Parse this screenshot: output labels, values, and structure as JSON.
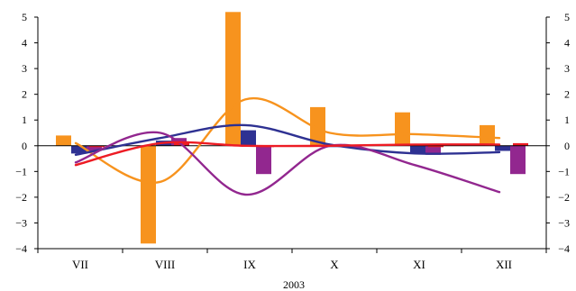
{
  "chart_data": {
    "type": "bar",
    "categories": [
      "VII",
      "VIII",
      "IX",
      "X",
      "XI",
      "XII"
    ],
    "xlabel": "2003",
    "ylim": [
      -4,
      5
    ],
    "yticks": [
      -4,
      -3,
      -2,
      -1,
      0,
      1,
      2,
      3,
      4,
      5
    ],
    "grid": false,
    "legend": "none",
    "dual_y_axis_labels": true,
    "bar_series": [
      {
        "color": "#F7931E",
        "values": [
          0.4,
          -3.8,
          5.2,
          1.5,
          1.3,
          0.8
        ]
      },
      {
        "color": "#2E3192",
        "values": [
          -0.3,
          0.2,
          0.6,
          0.0,
          -0.3,
          -0.2
        ]
      },
      {
        "color": "#92278F",
        "values": [
          -0.2,
          0.3,
          -1.1,
          0.0,
          -0.35,
          -1.1
        ]
      },
      {
        "color": "#ED1C24",
        "values": [
          0.0,
          0.1,
          0.0,
          0.0,
          0.0,
          0.1
        ]
      }
    ],
    "line_series": [
      {
        "color": "#F7931E",
        "values": [
          0.1,
          -1.4,
          1.8,
          0.5,
          0.45,
          0.3
        ]
      },
      {
        "color": "#2E3192",
        "values": [
          -0.35,
          0.3,
          0.8,
          0.05,
          -0.3,
          -0.25
        ]
      },
      {
        "color": "#92278F",
        "values": [
          -0.65,
          0.5,
          -1.9,
          0.0,
          -0.75,
          -1.8
        ]
      },
      {
        "color": "#ED1C24",
        "values": [
          -0.75,
          0.1,
          0.0,
          0.0,
          0.05,
          0.05
        ]
      }
    ]
  }
}
